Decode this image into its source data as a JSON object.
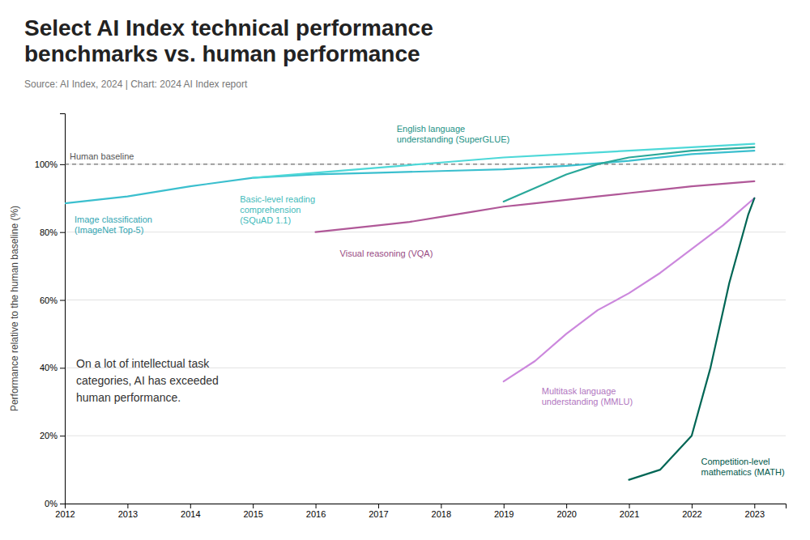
{
  "chart_data": {
    "type": "line",
    "title": "Select AI Index technical performance\nbenchmarks vs. human performance",
    "subtitle": "Source: AI Index, 2024 | Chart: 2024 AI Index report",
    "ylabel": "Performance relative to the human baseline (%)",
    "annotations": [
      {
        "text": "Human baseline",
        "y": 100
      },
      {
        "text": "On a lot of intellectual task\ncategories, AI has exceeded\nhuman performance."
      }
    ],
    "xlim": [
      2012,
      2023.5
    ],
    "xticks": [
      2012,
      2013,
      2014,
      2015,
      2016,
      2017,
      2018,
      2019,
      2020,
      2021,
      2022,
      2023
    ],
    "ylim": [
      0,
      115
    ],
    "yticks": [
      {
        "value": 0,
        "label": "0%"
      },
      {
        "value": 20,
        "label": "20%"
      },
      {
        "value": 40,
        "label": "40%"
      },
      {
        "value": 60,
        "label": "60%"
      },
      {
        "value": 80,
        "label": "80%"
      },
      {
        "value": 100,
        "label": "100%"
      }
    ],
    "grid": "y",
    "series": [
      {
        "name": "Image classification\n(ImageNet Top-5)",
        "color": "#3bbfce",
        "x": [
          2012,
          2013,
          2014,
          2015,
          2016,
          2017,
          2018,
          2019,
          2020,
          2021,
          2022,
          2023
        ],
        "values": [
          88.5,
          90.5,
          93.5,
          96,
          97,
          97.5,
          98,
          98.5,
          99.5,
          101,
          103,
          104
        ]
      },
      {
        "name": "Basic-level reading\ncomprehension\n(SQuAD 1.1)",
        "color": "#4dd8d8",
        "x": [
          2015,
          2016,
          2017,
          2018,
          2019,
          2020,
          2021,
          2022,
          2023
        ],
        "values": [
          96,
          97.5,
          99,
          100.5,
          102,
          103,
          104,
          105,
          106
        ]
      },
      {
        "name": "English language\nunderstanding (SuperGLUE)",
        "color": "#2aa89a",
        "x": [
          2019,
          2019.5,
          2020,
          2020.5,
          2021,
          2022,
          2023
        ],
        "values": [
          89,
          93,
          97,
          100,
          102,
          104,
          105
        ]
      },
      {
        "name": "Visual reasoning (VQA)",
        "color": "#b05898",
        "x": [
          2016,
          2017,
          2017.5,
          2018,
          2018.5,
          2019,
          2019.5,
          2020,
          2020.5,
          2021,
          2021.5,
          2022,
          2023
        ],
        "values": [
          80,
          82,
          83,
          84.5,
          86,
          87.5,
          88.5,
          89.5,
          90.5,
          91.5,
          92.5,
          93.5,
          95
        ]
      },
      {
        "name": "Multitask language\nunderstanding (MMLU)",
        "color": "#cc88dd",
        "x": [
          2019,
          2019.5,
          2020,
          2020.5,
          2021,
          2021.5,
          2022,
          2022.5,
          2023
        ],
        "values": [
          36,
          42,
          50,
          57,
          62,
          68,
          75,
          82,
          90
        ]
      },
      {
        "name": "Competition-level\nmathematics (MATH)",
        "color": "#006655",
        "x": [
          2021,
          2021.5,
          2022,
          2022.3,
          2022.6,
          2022.9,
          2023
        ],
        "values": [
          7,
          10,
          20,
          40,
          65,
          85,
          90
        ]
      }
    ]
  }
}
